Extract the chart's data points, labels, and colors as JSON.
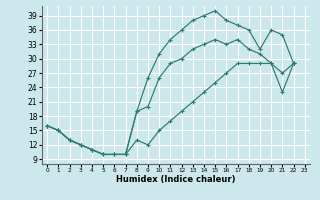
{
  "bg_color": "#cce8ec",
  "grid_color": "#ffffff",
  "line_color": "#2d7a6e",
  "xlabel": "Humidex (Indice chaleur)",
  "xlim": [
    -0.5,
    23.5
  ],
  "ylim": [
    8,
    41
  ],
  "xticks": [
    0,
    1,
    2,
    3,
    4,
    5,
    6,
    7,
    8,
    9,
    10,
    11,
    12,
    13,
    14,
    15,
    16,
    17,
    18,
    19,
    20,
    21,
    22,
    23
  ],
  "yticks": [
    9,
    12,
    15,
    18,
    21,
    24,
    27,
    30,
    33,
    36,
    39
  ],
  "x_upper": [
    0,
    1,
    2,
    3,
    4,
    5,
    6,
    7,
    8,
    9,
    10,
    11,
    12,
    13,
    14,
    15,
    16,
    17,
    18,
    19,
    20,
    21,
    22
  ],
  "y_upper": [
    16,
    15,
    13,
    12,
    11,
    10,
    10,
    10,
    19,
    26,
    31,
    34,
    36,
    38,
    39,
    40,
    38,
    37,
    36,
    32,
    36,
    35,
    29
  ],
  "x_lower": [
    0,
    1,
    2,
    3,
    4,
    5,
    6,
    7,
    8,
    9,
    10,
    11,
    12,
    13,
    14,
    15,
    16,
    17,
    18,
    19,
    20,
    21,
    22
  ],
  "y_lower": [
    16,
    15,
    13,
    12,
    11,
    10,
    10,
    10,
    13,
    12,
    15,
    17,
    19,
    21,
    23,
    25,
    27,
    29,
    29,
    29,
    29,
    23,
    29
  ],
  "x_mid": [
    0,
    1,
    2,
    3,
    4,
    5,
    6,
    7,
    8,
    9,
    10,
    11,
    12,
    13,
    14,
    15,
    16,
    17,
    18,
    19,
    20,
    21,
    22
  ],
  "y_mid": [
    16,
    15,
    13,
    12,
    11,
    10,
    10,
    10,
    19,
    20,
    26,
    29,
    30,
    32,
    33,
    34,
    33,
    34,
    32,
    31,
    29,
    27,
    29
  ]
}
